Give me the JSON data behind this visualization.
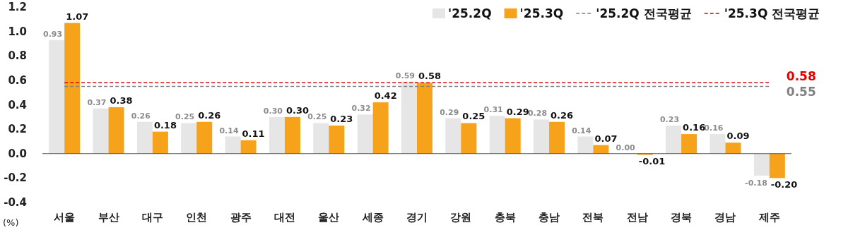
{
  "chart_data": {
    "type": "bar",
    "ylabel": "(%)",
    "categories": [
      "서울",
      "부산",
      "대구",
      "인천",
      "광주",
      "대전",
      "울산",
      "세종",
      "경기",
      "강원",
      "충북",
      "충남",
      "전북",
      "전남",
      "경북",
      "경남",
      "제주"
    ],
    "series": [
      {
        "name": "'25.2Q",
        "color": "#e6e6e6",
        "values": [
          0.93,
          0.37,
          0.26,
          0.25,
          0.14,
          0.3,
          0.25,
          0.32,
          0.59,
          0.29,
          0.31,
          0.28,
          0.14,
          0.0,
          0.23,
          0.16,
          -0.18
        ],
        "value_labels": [
          "0.93",
          "0.37",
          "0.26",
          "0.25",
          "0.14",
          "0.30",
          "0.25",
          "0.32",
          "0.59",
          "0.29",
          "0.31",
          "0.28",
          "0.14",
          "0.00",
          "0.23",
          "0.16",
          "-0.18"
        ]
      },
      {
        "name": "'25.3Q",
        "color": "#f7a21b",
        "values": [
          1.07,
          0.38,
          0.18,
          0.26,
          0.11,
          0.3,
          0.23,
          0.42,
          0.58,
          0.25,
          0.29,
          0.26,
          0.07,
          -0.01,
          0.16,
          0.09,
          -0.2
        ],
        "value_labels": [
          "1.07",
          "0.38",
          "0.18",
          "0.26",
          "0.11",
          "0.30",
          "0.23",
          "0.42",
          "0.58",
          "0.25",
          "0.29",
          "0.26",
          "0.07",
          "-0.01",
          "0.16",
          "0.09",
          "-0.20"
        ]
      },
      {
        "name": "'25.2Q 전국평균",
        "type": "line",
        "line_style": "dashed",
        "color": "#808080",
        "values": [
          0.55,
          0.55,
          0.55,
          0.55,
          0.55,
          0.55,
          0.55,
          0.55,
          0.55,
          0.55,
          0.55,
          0.55,
          0.55,
          0.55,
          0.55,
          0.55,
          0.55
        ],
        "value_labels": [
          null,
          null,
          null,
          null,
          null,
          null,
          null,
          null,
          null,
          null,
          null,
          null,
          null,
          null,
          null,
          null,
          "0.55"
        ]
      },
      {
        "name": "'25.3Q 전국평균",
        "type": "line",
        "line_style": "dashed",
        "color": "#e00000",
        "values": [
          0.58,
          0.58,
          0.58,
          0.58,
          0.58,
          0.58,
          0.58,
          0.58,
          0.58,
          0.58,
          0.58,
          0.58,
          0.58,
          0.58,
          0.58,
          0.58,
          0.58
        ],
        "value_labels": [
          null,
          null,
          null,
          null,
          null,
          null,
          null,
          null,
          null,
          null,
          null,
          null,
          null,
          null,
          null,
          null,
          "0.58"
        ]
      }
    ],
    "ylim": [
      -0.4,
      1.2
    ],
    "yticks": [
      {
        "value": -0.4,
        "label": "-0.4"
      },
      {
        "value": -0.2,
        "label": "-0.2"
      },
      {
        "value": 0,
        "label": "0.0"
      },
      {
        "value": 0.2,
        "label": "0.2"
      },
      {
        "value": 0.4,
        "label": "0.4"
      },
      {
        "value": 0.6,
        "label": "0.6"
      },
      {
        "value": 0.8,
        "label": "0.8"
      },
      {
        "value": 1.0,
        "label": "1.0"
      },
      {
        "value": 1.2,
        "label": "1.2"
      }
    ],
    "legend": "top right"
  }
}
